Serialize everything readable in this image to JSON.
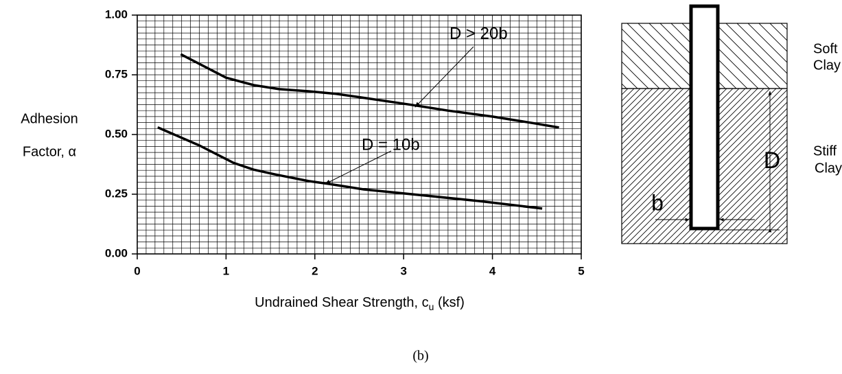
{
  "chart_data": {
    "type": "line",
    "ylabel": [
      "Adhesion",
      "Factor, α"
    ],
    "xlabel": [
      "Undrained Shear Strength, c",
      "u",
      " (ksf)"
    ],
    "xlim": [
      0,
      5
    ],
    "xticks": [
      0,
      1,
      2,
      3,
      4,
      5
    ],
    "ylim": [
      0,
      1
    ],
    "yticks": [
      {
        "value": 0,
        "label": "0.00"
      },
      0.25,
      {
        "value": 0.5,
        "label": "0.50"
      },
      0.75,
      {
        "value": 1,
        "label": "1.00"
      }
    ],
    "grid": true,
    "series": [
      {
        "name": "D > 20b",
        "color": "#000000",
        "x": [
          0.49,
          1.0,
          1.31,
          1.6,
          1.93,
          2.24,
          2.47,
          3.09,
          3.5,
          4.0,
          4.5,
          4.75
        ],
        "values": [
          0.836,
          0.738,
          0.707,
          0.69,
          0.681,
          0.67,
          0.658,
          0.624,
          0.6,
          0.575,
          0.545,
          0.529
        ]
      },
      {
        "name": "D = 10b",
        "color": "#000000",
        "x": [
          0.23,
          0.7,
          1.08,
          1.31,
          1.55,
          1.93,
          2.16,
          2.55,
          3.09,
          3.86,
          4.56
        ],
        "values": [
          0.53,
          0.454,
          0.382,
          0.353,
          0.333,
          0.305,
          0.293,
          0.27,
          0.25,
          0.221,
          0.19
        ]
      }
    ]
  },
  "diagram": {
    "soft": [
      "Soft",
      "Clay"
    ],
    "stiff": [
      "Stiff",
      "Clay"
    ],
    "depth": "D",
    "width": "b"
  },
  "caption": "(b)"
}
